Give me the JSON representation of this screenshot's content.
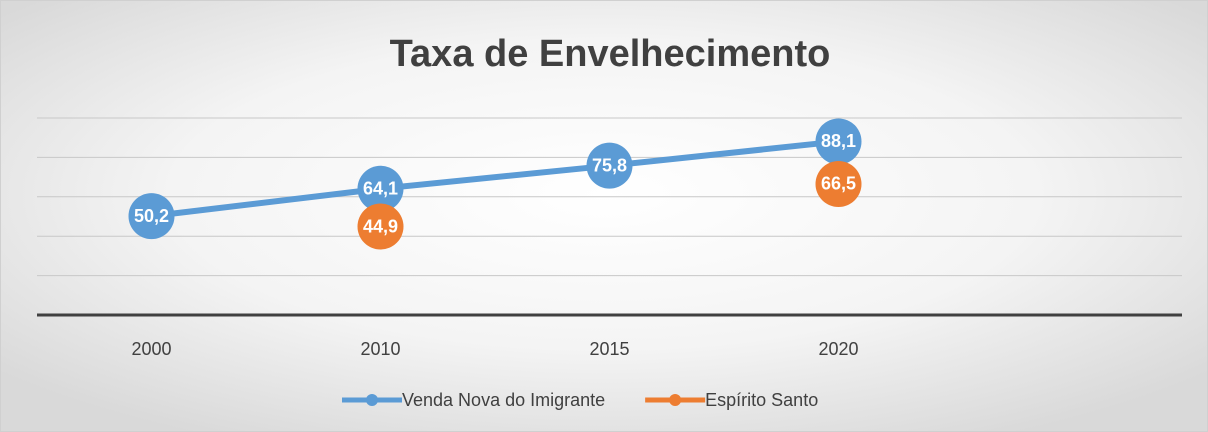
{
  "chart_data": {
    "type": "line",
    "title": "Taxa de Envelhecimento",
    "categories": [
      "2000",
      "2010",
      "2015",
      "2020",
      null
    ],
    "series": [
      {
        "name": "Venda Nova do Imigrante",
        "color": "#5b9bd5",
        "values": [
          50.2,
          64.1,
          75.8,
          88.1,
          null
        ],
        "value_labels": [
          "50,2",
          "64,1",
          "75,8",
          "88,1",
          null
        ]
      },
      {
        "name": "Espírito Santo",
        "color": "#ed7d31",
        "values": [
          null,
          44.9,
          null,
          66.5,
          null
        ],
        "value_labels": [
          null,
          "44,9",
          null,
          "66,5",
          null
        ]
      }
    ],
    "ylim": [
      0,
      100
    ],
    "yticks": [
      0,
      20,
      40,
      60,
      80,
      100
    ],
    "grid": true,
    "legend": "bottom"
  }
}
